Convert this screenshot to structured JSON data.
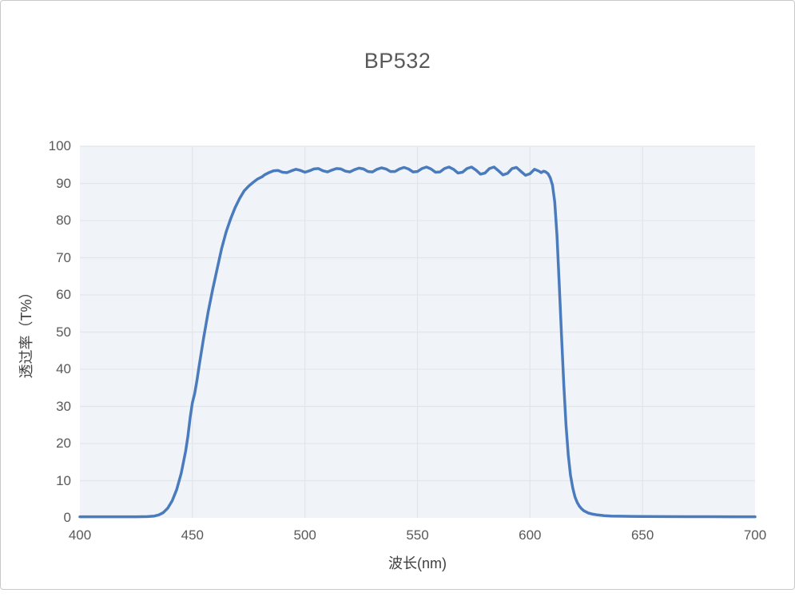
{
  "chart_data": {
    "type": "line",
    "title": "BP532",
    "xlabel": "波长(nm)",
    "ylabel": "透过率（T%）",
    "xlim": [
      400,
      700
    ],
    "ylim": [
      0,
      100
    ],
    "x_ticks": [
      400,
      450,
      500,
      550,
      600,
      650,
      700
    ],
    "y_ticks": [
      0,
      10,
      20,
      30,
      40,
      50,
      60,
      70,
      80,
      90,
      100
    ],
    "grid": true,
    "legend": "none",
    "colors": {
      "line": "#4a7bbd",
      "plot_background": "#f0f4f8",
      "grid": "#e2e6ea",
      "title_text": "#595959",
      "tick_text": "#595959",
      "axis_text": "#404040",
      "card_border": "#c9c9c9"
    },
    "series": [
      {
        "name": "BP532",
        "points": [
          [
            400,
            0.3
          ],
          [
            405,
            0.3
          ],
          [
            410,
            0.3
          ],
          [
            415,
            0.3
          ],
          [
            420,
            0.3
          ],
          [
            425,
            0.3
          ],
          [
            430,
            0.35
          ],
          [
            433,
            0.5
          ],
          [
            435,
            0.8
          ],
          [
            437,
            1.4
          ],
          [
            439,
            2.6
          ],
          [
            441,
            4.6
          ],
          [
            443,
            7.6
          ],
          [
            445,
            12
          ],
          [
            447,
            18
          ],
          [
            448,
            22
          ],
          [
            449,
            27
          ],
          [
            450,
            31
          ],
          [
            451,
            33.5
          ],
          [
            452,
            37
          ],
          [
            453,
            41
          ],
          [
            455,
            48.5
          ],
          [
            457,
            55.5
          ],
          [
            459,
            61.5
          ],
          [
            461,
            67
          ],
          [
            463,
            72.5
          ],
          [
            465,
            77
          ],
          [
            467,
            80.5
          ],
          [
            469,
            83.5
          ],
          [
            471,
            86
          ],
          [
            473,
            88
          ],
          [
            475,
            89.3
          ],
          [
            477,
            90.3
          ],
          [
            479,
            91.2
          ],
          [
            481,
            91.8
          ],
          [
            482,
            92.3
          ],
          [
            484,
            92.9
          ],
          [
            486,
            93.4
          ],
          [
            488,
            93.5
          ],
          [
            490,
            93.0
          ],
          [
            492,
            92.9
          ],
          [
            494,
            93.4
          ],
          [
            496,
            93.8
          ],
          [
            498,
            93.5
          ],
          [
            500,
            93.0
          ],
          [
            502,
            93.4
          ],
          [
            504,
            93.9
          ],
          [
            506,
            94.0
          ],
          [
            508,
            93.4
          ],
          [
            510,
            93.1
          ],
          [
            512,
            93.6
          ],
          [
            514,
            94.0
          ],
          [
            516,
            93.9
          ],
          [
            518,
            93.3
          ],
          [
            520,
            93.1
          ],
          [
            522,
            93.7
          ],
          [
            524,
            94.1
          ],
          [
            526,
            93.9
          ],
          [
            528,
            93.2
          ],
          [
            530,
            93.1
          ],
          [
            532,
            93.8
          ],
          [
            534,
            94.2
          ],
          [
            536,
            93.9
          ],
          [
            538,
            93.2
          ],
          [
            540,
            93.2
          ],
          [
            542,
            93.9
          ],
          [
            544,
            94.3
          ],
          [
            546,
            93.9
          ],
          [
            548,
            93.1
          ],
          [
            550,
            93.2
          ],
          [
            552,
            94.0
          ],
          [
            554,
            94.4
          ],
          [
            556,
            93.9
          ],
          [
            558,
            93.0
          ],
          [
            560,
            93.1
          ],
          [
            562,
            94.0
          ],
          [
            564,
            94.4
          ],
          [
            566,
            93.8
          ],
          [
            568,
            92.8
          ],
          [
            570,
            93.0
          ],
          [
            572,
            94.0
          ],
          [
            574,
            94.4
          ],
          [
            576,
            93.6
          ],
          [
            578,
            92.5
          ],
          [
            580,
            92.8
          ],
          [
            582,
            94.0
          ],
          [
            584,
            94.4
          ],
          [
            586,
            93.4
          ],
          [
            588,
            92.3
          ],
          [
            590,
            92.7
          ],
          [
            592,
            94.0
          ],
          [
            594,
            94.3
          ],
          [
            596,
            93.2
          ],
          [
            598,
            92.2
          ],
          [
            600,
            92.6
          ],
          [
            602,
            93.8
          ],
          [
            604,
            93.3
          ],
          [
            605,
            92.9
          ],
          [
            606,
            93.3
          ],
          [
            607,
            93.1
          ],
          [
            608,
            92.6
          ],
          [
            609,
            91.5
          ],
          [
            610,
            89.5
          ],
          [
            611,
            85
          ],
          [
            612,
            76
          ],
          [
            613,
            63
          ],
          [
            614,
            49
          ],
          [
            615,
            36
          ],
          [
            616,
            25
          ],
          [
            617,
            17
          ],
          [
            618,
            11.5
          ],
          [
            619,
            8
          ],
          [
            620,
            5.6
          ],
          [
            621,
            4.1
          ],
          [
            622,
            3.1
          ],
          [
            623,
            2.4
          ],
          [
            624,
            1.9
          ],
          [
            626,
            1.3
          ],
          [
            628,
            1.0
          ],
          [
            630,
            0.8
          ],
          [
            633,
            0.6
          ],
          [
            636,
            0.5
          ],
          [
            640,
            0.45
          ],
          [
            645,
            0.4
          ],
          [
            650,
            0.38
          ],
          [
            660,
            0.35
          ],
          [
            670,
            0.33
          ],
          [
            680,
            0.32
          ],
          [
            690,
            0.31
          ],
          [
            700,
            0.3
          ]
        ]
      }
    ]
  }
}
